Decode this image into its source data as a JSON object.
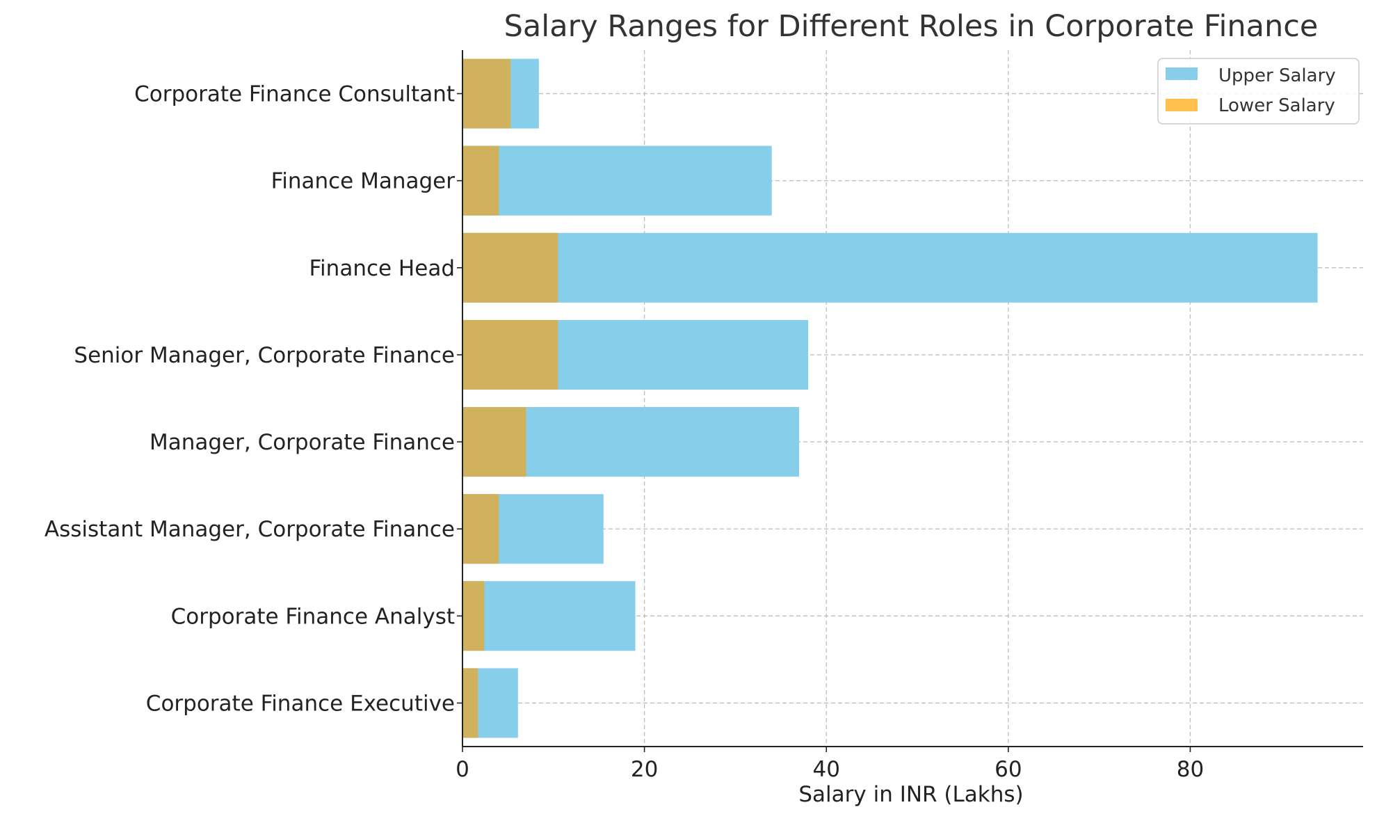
{
  "chart_data": {
    "type": "bar",
    "orientation": "horizontal",
    "title": "Salary Ranges for Different Roles in Corporate Finance",
    "xlabel": "Salary in INR (Lakhs)",
    "ylabel": "",
    "xlim": [
      0,
      99
    ],
    "xticks": [
      0,
      20,
      40,
      60,
      80
    ],
    "grid": true,
    "legend_position": "top-right",
    "categories": [
      "Corporate Finance Executive",
      "Corporate Finance Analyst",
      "Assistant Manager, Corporate Finance",
      "Manager, Corporate Finance",
      "Senior Manager, Corporate Finance",
      "Finance Head",
      "Finance Manager",
      "Corporate Finance Consultant"
    ],
    "series": [
      {
        "name": "Upper Salary",
        "color": "#87CEEB",
        "values": [
          6.1,
          19,
          15.5,
          37,
          38,
          94,
          34,
          8.4
        ]
      },
      {
        "name": "Lower Salary",
        "color": "#FFC04D",
        "display_color": "#D0B25E",
        "values": [
          1.7,
          2.4,
          4,
          7,
          10.5,
          10.5,
          4,
          5.3
        ]
      }
    ]
  }
}
